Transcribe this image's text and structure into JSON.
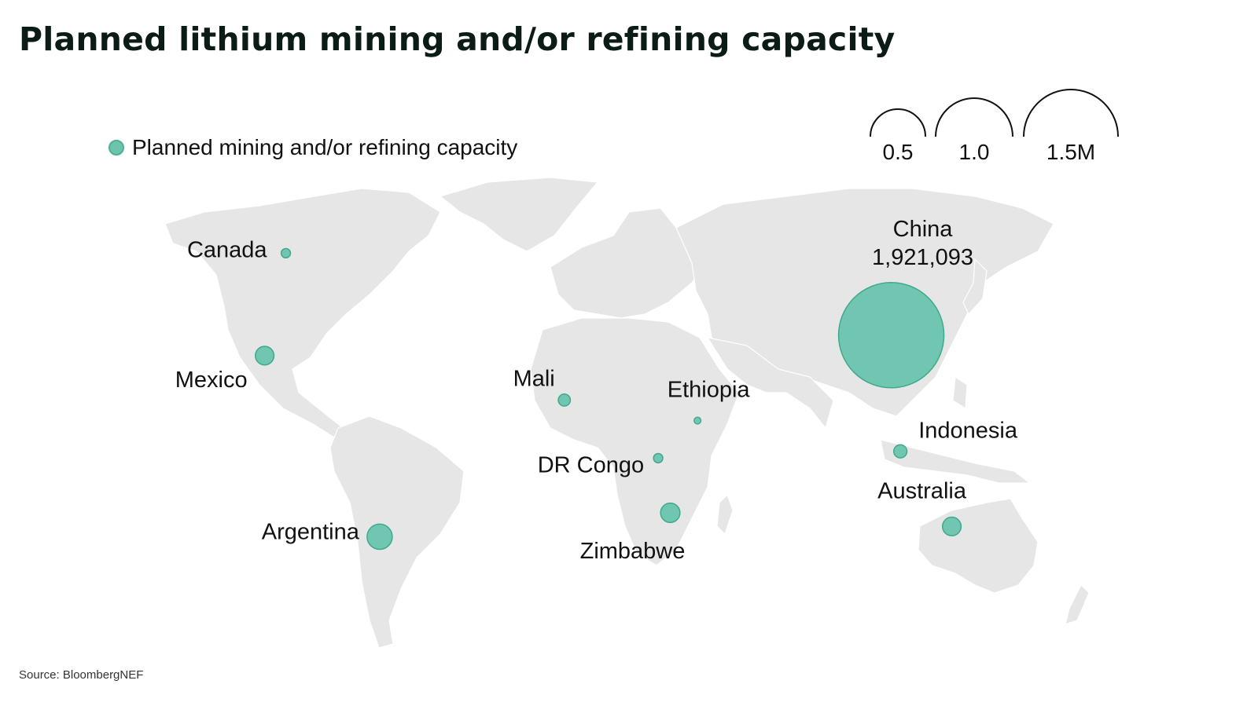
{
  "title": "Planned lithium mining and/or refining capacity",
  "legend": {
    "label": "Planned mining and/or refining capacity",
    "color": "#6cc4ad"
  },
  "size_key": {
    "labels": [
      "0.5",
      "1.0",
      "1.5M"
    ],
    "values": [
      500000,
      1000000,
      1500000
    ]
  },
  "source": "Source: BloombergNEF",
  "colors": {
    "land": "#e6e6e6",
    "border": "#ffffff",
    "bubble": "#5cc0a7",
    "bubble_edge": "#3fa98e"
  },
  "chart_data": {
    "type": "bubble-map",
    "title": "Planned lithium mining and/or refining capacity",
    "max_value_shown": 1921093,
    "points": [
      {
        "name": "China",
        "value": 1921093,
        "value_label": "1,921,093",
        "lon": 103,
        "lat": 32
      },
      {
        "name": "Canada",
        "value": 15000,
        "lon": -97,
        "lat": 56
      },
      {
        "name": "Mexico",
        "value": 60000,
        "lon": -104,
        "lat": 26
      },
      {
        "name": "Mali",
        "value": 25000,
        "lon": -5,
        "lat": 13
      },
      {
        "name": "Ethiopia",
        "value": 8000,
        "lon": 39,
        "lat": 7
      },
      {
        "name": "DR Congo",
        "value": 15000,
        "lon": 26,
        "lat": -4
      },
      {
        "name": "Zimbabwe",
        "value": 65000,
        "lon": 30,
        "lat": -20
      },
      {
        "name": "Argentina",
        "value": 110000,
        "lon": -66,
        "lat": -27
      },
      {
        "name": "Indonesia",
        "value": 30000,
        "lon": 106,
        "lat": -2
      },
      {
        "name": "Australia",
        "value": 60000,
        "lon": 123,
        "lat": -24
      }
    ]
  }
}
